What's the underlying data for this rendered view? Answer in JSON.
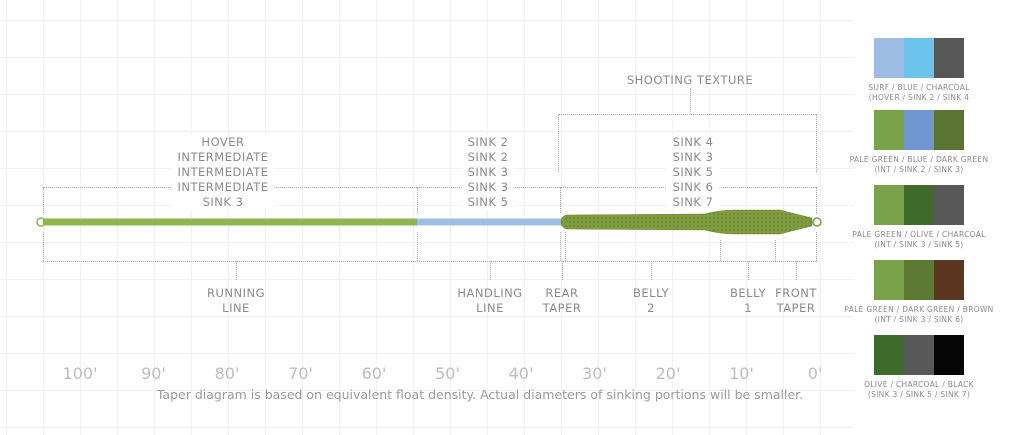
{
  "top_groups": [
    {
      "lines": [
        "HOVER",
        "INTERMEDIATE",
        "INTERMEDIATE",
        "INTERMEDIATE",
        "SINK 3"
      ]
    },
    {
      "lines": [
        "SINK 2",
        "SINK 2",
        "SINK 3",
        "SINK 3",
        "SINK 5"
      ]
    },
    {
      "lines": [
        "SINK 4",
        "SINK 3",
        "SINK 5",
        "SINK 6",
        "SINK 7"
      ]
    }
  ],
  "shooting_texture": "SHOOTING TEXTURE",
  "sections": [
    {
      "lines": [
        "RUNNING",
        "LINE"
      ]
    },
    {
      "lines": [
        "HANDLING",
        "LINE"
      ]
    },
    {
      "lines": [
        "REAR",
        "TAPER"
      ]
    },
    {
      "lines": [
        "BELLY",
        "2"
      ]
    },
    {
      "lines": [
        "BELLY",
        "1"
      ]
    },
    {
      "lines": [
        "FRONT",
        "TAPER"
      ]
    }
  ],
  "axis_ticks": [
    "100'",
    "90'",
    "80'",
    "70'",
    "60'",
    "50'",
    "40'",
    "30'",
    "20'",
    "10'",
    "0'"
  ],
  "caption": "Taper diagram is based on equivalent float density.  Actual diameters of sinking portions will be smaller.",
  "line_colors": {
    "running": "#8fb54e",
    "handling": "#9cc0e6",
    "head": "#7d9a3c"
  },
  "swatches": [
    {
      "colors": [
        "#9dbde4",
        "#6cc3ec",
        "#575757"
      ],
      "name": "SURF / BLUE / CHARCOAL",
      "sub": "(HOVER / SINK 2 / SINK 4"
    },
    {
      "colors": [
        "#79a24a",
        "#6f97d1",
        "#5b7432"
      ],
      "name": "PALE GREEN / BLUE / DARK GREEN",
      "sub": "(INT / SINK 2 / SINK 3)"
    },
    {
      "colors": [
        "#79a24a",
        "#3f6a2c",
        "#575757"
      ],
      "name": "PALE GREEN / OLIVE / CHARCOAL",
      "sub": "(INT / SINK 3 / SINK 5)"
    },
    {
      "colors": [
        "#79a24a",
        "#5d7a34",
        "#5a3520"
      ],
      "name": "PALE GREEN / DARK GREEN / BROWN",
      "sub": "(INT / SINK 3 / SINK 6)"
    },
    {
      "colors": [
        "#3e6a2c",
        "#585858",
        "#050505"
      ],
      "name": "OLIVE / CHARCOAL / BLACK",
      "sub": "(SINK 3 / SINK 5 / SINK 7)"
    }
  ]
}
